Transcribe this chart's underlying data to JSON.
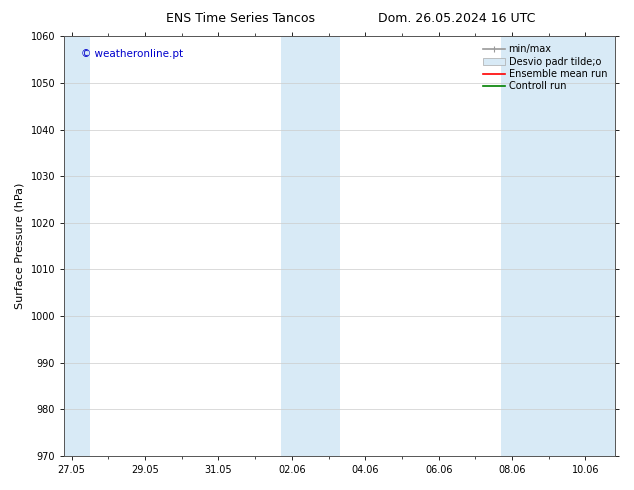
{
  "title_left": "ENS Time Series Tancos",
  "title_right": "Dom. 26.05.2024 16 UTC",
  "ylabel": "Surface Pressure (hPa)",
  "ylim": [
    970,
    1060
  ],
  "yticks": [
    970,
    980,
    990,
    1000,
    1010,
    1020,
    1030,
    1040,
    1050,
    1060
  ],
  "xtick_labels": [
    "27.05",
    "29.05",
    "31.05",
    "02.06",
    "04.06",
    "06.06",
    "08.06",
    "10.06"
  ],
  "xtick_positions": [
    0,
    2,
    4,
    6,
    8,
    10,
    12,
    14
  ],
  "x_minor_ticks": [
    1,
    3,
    5,
    7,
    9,
    11,
    13
  ],
  "xlim": [
    -0.2,
    14.8
  ],
  "shaded_bands": [
    {
      "x_start": -0.2,
      "x_end": 0.5,
      "color": "#d8eaf6"
    },
    {
      "x_start": 5.7,
      "x_end": 7.3,
      "color": "#d8eaf6"
    },
    {
      "x_start": 11.7,
      "x_end": 14.8,
      "color": "#d8eaf6"
    }
  ],
  "watermark_text": "© weatheronline.pt",
  "watermark_color": "#0000cc",
  "legend_labels": [
    "min/max",
    "Desvio padr tilde;o",
    "Ensemble mean run",
    "Controll run"
  ],
  "legend_colors": [
    "#999999",
    "#d8eaf6",
    "red",
    "green"
  ],
  "bg_color": "#ffffff",
  "spine_color": "#555555",
  "title_fontsize": 9,
  "tick_fontsize": 7,
  "label_fontsize": 8,
  "legend_fontsize": 7
}
